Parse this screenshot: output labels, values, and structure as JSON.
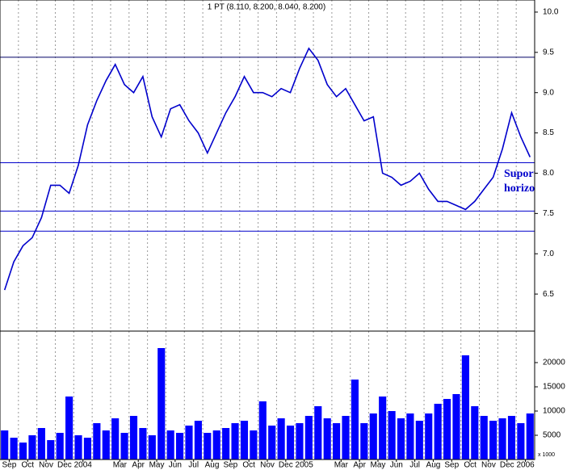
{
  "chart_data": [
    {
      "type": "line",
      "title": "1 PT (8.110, 8.200, 8.040, 8.200)",
      "color": "#0000cc",
      "x": [
        0.25,
        0.75,
        1.25,
        1.75,
        2.25,
        2.75,
        3.25,
        3.75,
        4.25,
        4.75,
        5.25,
        5.75,
        6.25,
        6.75,
        7.25,
        7.75,
        8.25,
        8.75,
        9.25,
        9.75,
        10.25,
        10.75,
        11.25,
        11.75,
        12.25,
        12.75,
        13.25,
        13.75,
        14.25,
        14.75,
        15.25,
        15.75,
        16.25,
        16.75,
        17.25,
        17.75,
        18.25,
        18.75,
        19.25,
        19.75,
        20.25,
        20.75,
        21.25,
        21.75,
        22.25,
        22.75,
        23.25,
        23.75,
        24.25,
        24.75,
        25.25,
        25.75,
        26.25,
        26.75,
        27.25,
        27.75,
        28.25,
        28.75
      ],
      "values": [
        6.55,
        6.9,
        7.1,
        7.2,
        7.45,
        7.85,
        7.85,
        7.75,
        8.1,
        8.6,
        8.9,
        9.15,
        9.35,
        9.1,
        9.0,
        9.2,
        8.7,
        8.45,
        8.8,
        8.85,
        8.65,
        8.5,
        8.25,
        8.5,
        8.75,
        8.95,
        9.2,
        9.0,
        9.0,
        8.95,
        9.05,
        9.0,
        9.3,
        9.55,
        9.4,
        9.1,
        8.95,
        9.05,
        8.85,
        8.65,
        8.7,
        8.0,
        7.95,
        7.85,
        7.9,
        8.0,
        7.8,
        7.65,
        7.65,
        7.6,
        7.55,
        7.65,
        7.8,
        7.95,
        8.3,
        8.75,
        8.45,
        8.2
      ],
      "xlim": [
        0,
        29
      ],
      "ylim": [
        6.04,
        10.15
      ],
      "yticks": [
        6.5,
        {
          "value": 7,
          "label": "7.0"
        },
        7.5,
        {
          "value": 8,
          "label": "8.0"
        },
        8.5,
        {
          "value": 9,
          "label": "9.0"
        },
        9.5,
        {
          "value": 10,
          "label": "10.0"
        }
      ],
      "support_lines": [
        {
          "value": 9.44,
          "color": "#000066"
        },
        {
          "value": 8.13,
          "color": "#0000cc"
        },
        {
          "value": 7.53,
          "color": "#0000cc"
        },
        {
          "value": 7.28,
          "color": "#0000cc"
        }
      ],
      "annotation": [
        "Suport",
        "horizon"
      ]
    },
    {
      "type": "bar",
      "color": "#0000ff",
      "unit_label": "x 1000",
      "x": [
        0.25,
        0.75,
        1.25,
        1.75,
        2.25,
        2.75,
        3.25,
        3.75,
        4.25,
        4.75,
        5.25,
        5.75,
        6.25,
        6.75,
        7.25,
        7.75,
        8.25,
        8.75,
        9.25,
        9.75,
        10.25,
        10.75,
        11.25,
        11.75,
        12.25,
        12.75,
        13.25,
        13.75,
        14.25,
        14.75,
        15.25,
        15.75,
        16.25,
        16.75,
        17.25,
        17.75,
        18.25,
        18.75,
        19.25,
        19.75,
        20.25,
        20.75,
        21.25,
        21.75,
        22.25,
        22.75,
        23.25,
        23.75,
        24.25,
        24.75,
        25.25,
        25.75,
        26.25,
        26.75,
        27.25,
        27.75,
        28.25,
        28.75
      ],
      "values": [
        6000,
        4500,
        3500,
        5000,
        6500,
        4000,
        5500,
        13000,
        5000,
        4500,
        7500,
        6000,
        8500,
        5500,
        9000,
        6500,
        5000,
        23000,
        6000,
        5500,
        7000,
        8000,
        5500,
        6000,
        6500,
        7500,
        8000,
        6000,
        12000,
        7000,
        8500,
        7000,
        7500,
        9000,
        11000,
        8500,
        7500,
        9000,
        16500,
        7500,
        9500,
        13000,
        10000,
        8500,
        9500,
        8000,
        9500,
        11500,
        12500,
        13500,
        21500,
        11000,
        9000,
        8000,
        8500,
        9000,
        7500,
        9500
      ],
      "xlim": [
        0,
        29
      ],
      "ylim": [
        0,
        26500
      ],
      "yticks": [
        5000,
        10000,
        15000,
        20000
      ],
      "xticks": [
        {
          "value": 0.5,
          "label": "Sep"
        },
        {
          "value": 1.5,
          "label": "Oct"
        },
        {
          "value": 2.5,
          "label": "Nov"
        },
        {
          "value": 3.5,
          "label": "Dec"
        },
        {
          "value": 4.5,
          "label": "2004"
        },
        {
          "value": 6.5,
          "label": "Mar"
        },
        {
          "value": 7.5,
          "label": "Apr"
        },
        {
          "value": 8.5,
          "label": "May"
        },
        {
          "value": 9.5,
          "label": "Jun"
        },
        {
          "value": 10.5,
          "label": "Jul"
        },
        {
          "value": 11.5,
          "label": "Aug"
        },
        {
          "value": 12.5,
          "label": "Sep"
        },
        {
          "value": 13.5,
          "label": "Oct"
        },
        {
          "value": 14.5,
          "label": "Nov"
        },
        {
          "value": 15.5,
          "label": "Dec"
        },
        {
          "value": 16.5,
          "label": "2005"
        },
        {
          "value": 18.5,
          "label": "Mar"
        },
        {
          "value": 19.5,
          "label": "Apr"
        },
        {
          "value": 20.5,
          "label": "May"
        },
        {
          "value": 21.5,
          "label": "Jun"
        },
        {
          "value": 22.5,
          "label": "Jul"
        },
        {
          "value": 23.5,
          "label": "Aug"
        },
        {
          "value": 24.5,
          "label": "Sep"
        },
        {
          "value": 25.5,
          "label": "Oct"
        },
        {
          "value": 26.5,
          "label": "Nov"
        },
        {
          "value": 27.5,
          "label": "Dec"
        },
        {
          "value": 28.5,
          "label": "2006"
        }
      ]
    }
  ]
}
